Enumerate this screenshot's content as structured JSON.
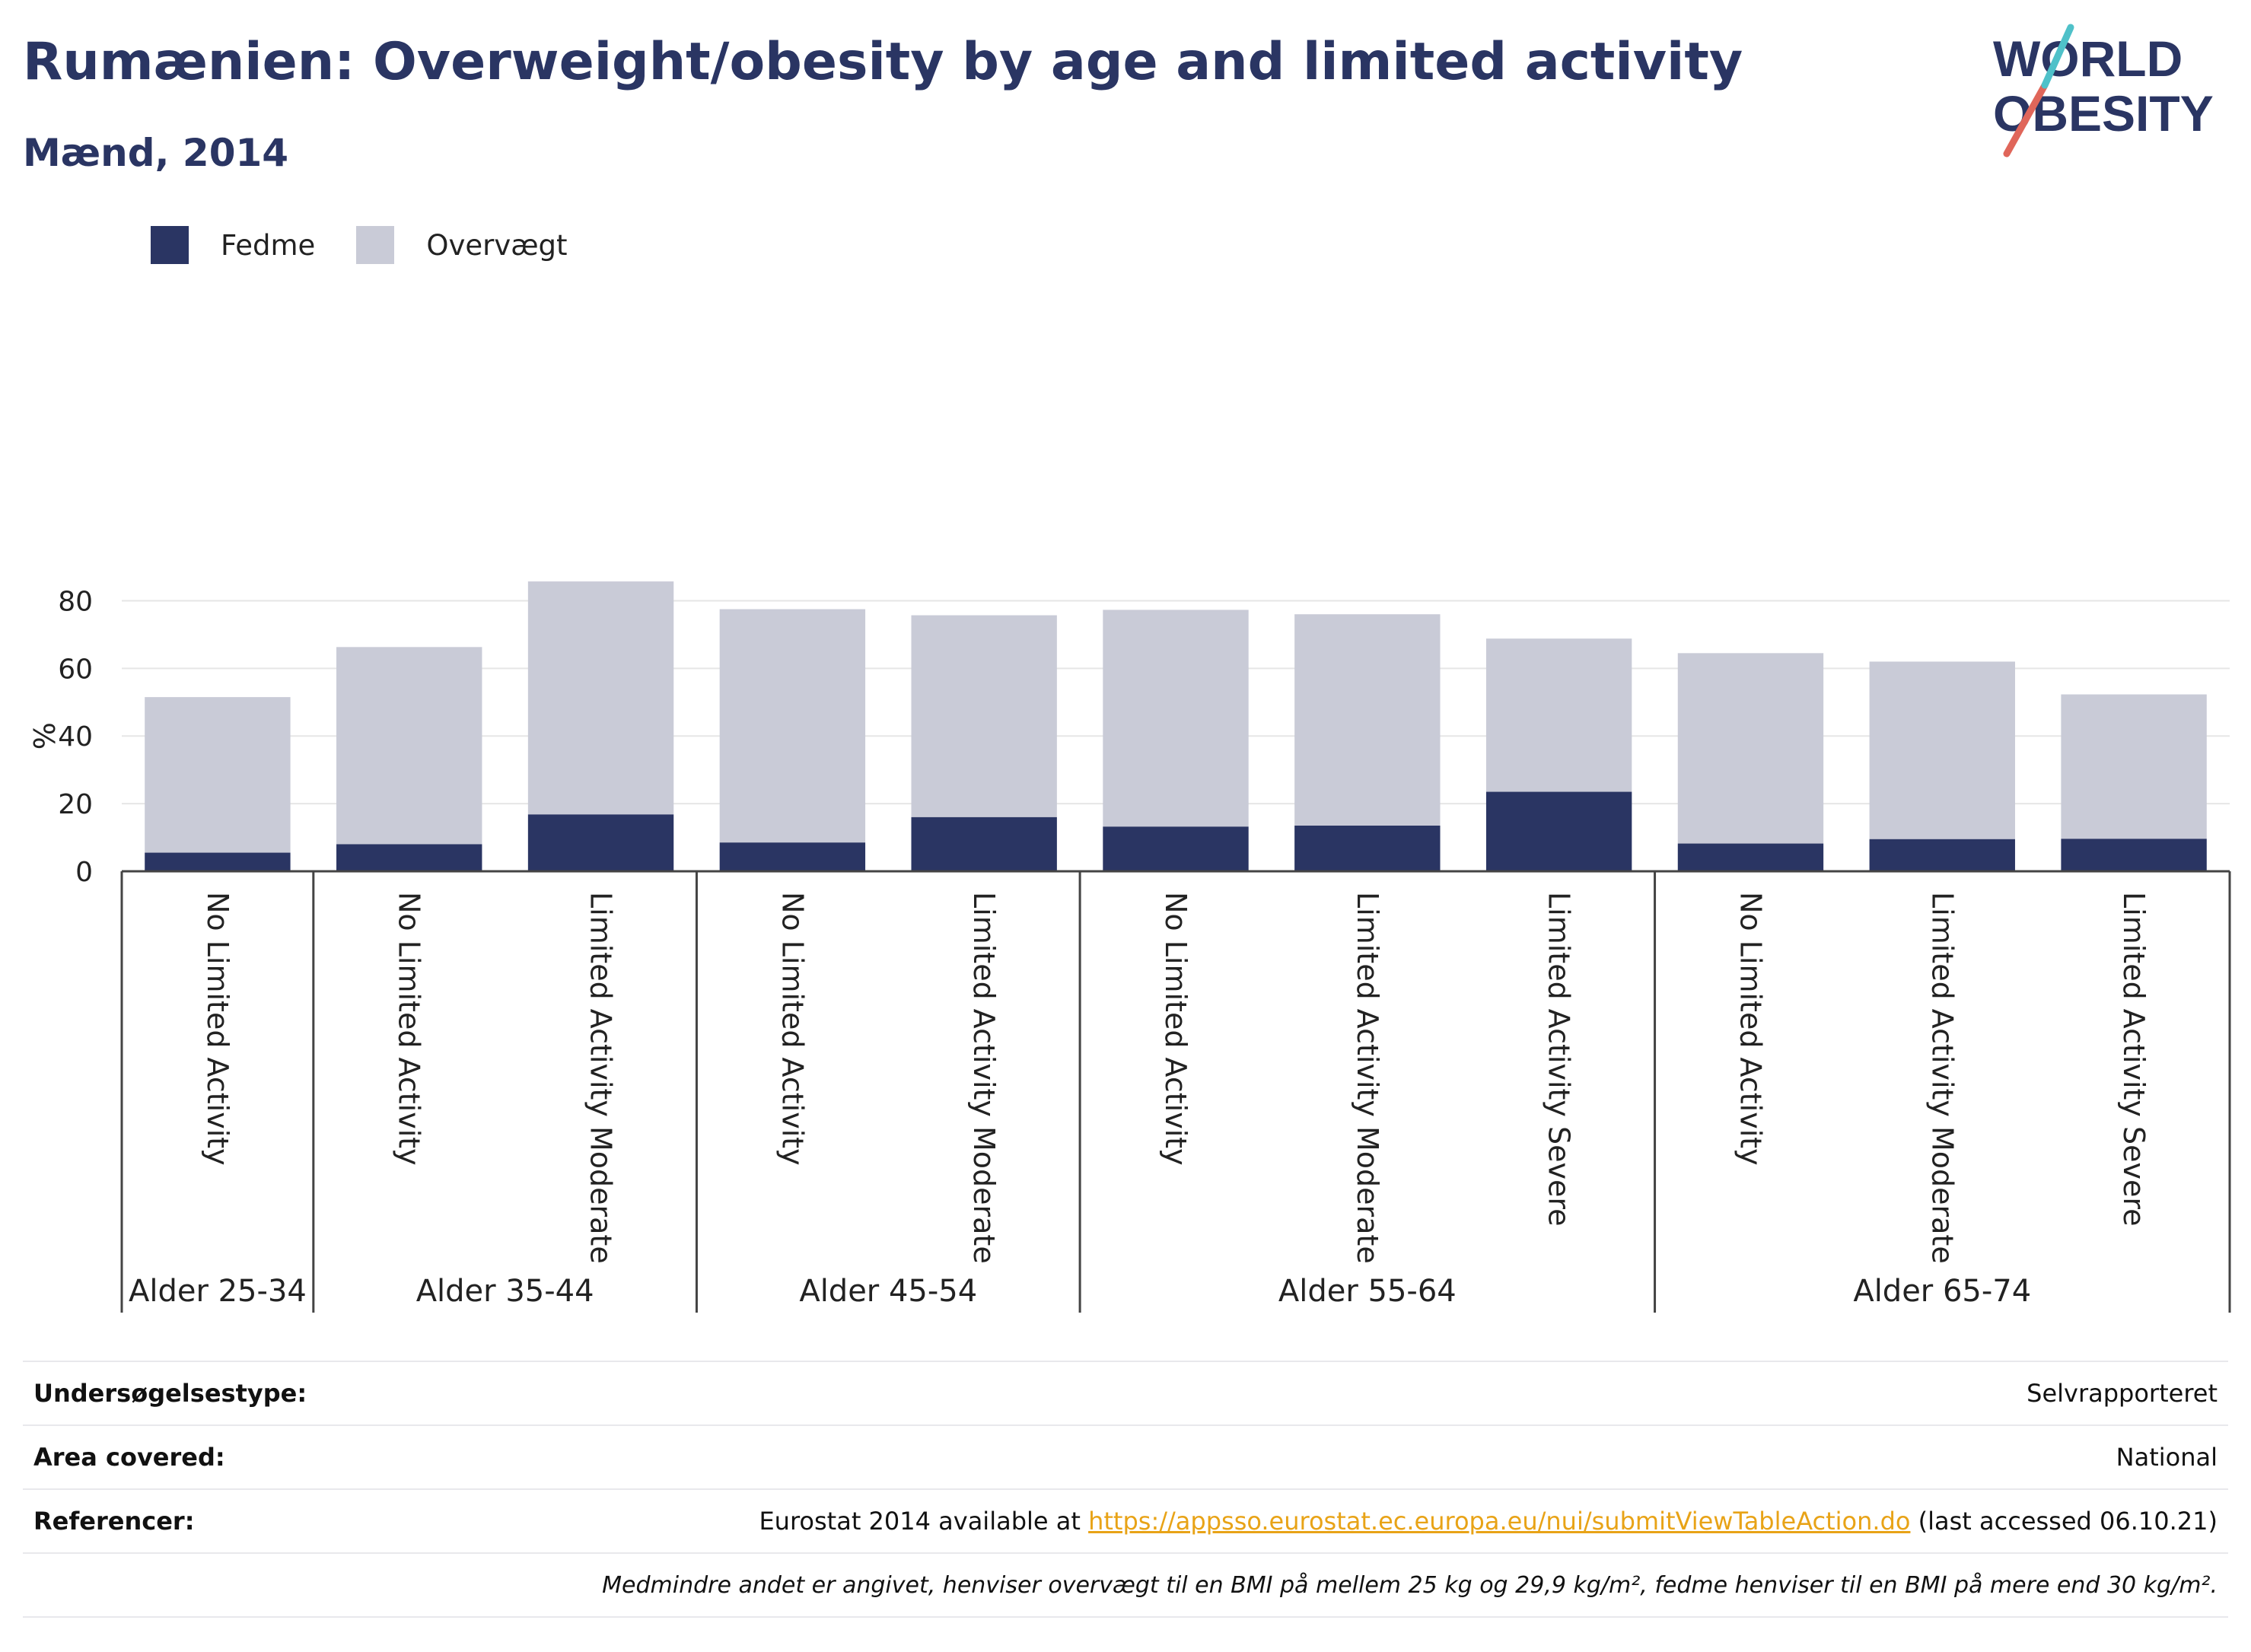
{
  "header": {
    "title": "Rumænien: Overweight/obesity by age and limited activity",
    "subtitle": "Mænd, 2014"
  },
  "logo": {
    "line1": "WORLD",
    "line2": "OBESITY",
    "accent_colors": [
      "#e0665a",
      "#4fc1c9"
    ]
  },
  "colors": {
    "obesity": "#2a3563",
    "overweight": "#c9cbd7",
    "grid": "#e6e6e6",
    "axis": "#444444"
  },
  "legend": [
    {
      "label": "Fedme",
      "color": "#2a3563"
    },
    {
      "label": "Overvægt",
      "color": "#c9cbd7"
    }
  ],
  "chart_data": {
    "type": "bar",
    "stacked": true,
    "ylabel": "%",
    "ylim": [
      0,
      90
    ],
    "yticks": [
      0,
      20,
      40,
      60,
      80
    ],
    "grid": true,
    "legend_position": "top-left",
    "categories": [
      "No Limited Activity",
      "No Limited Activity",
      "Limited Activity Moderate",
      "No Limited Activity",
      "Limited Activity Moderate",
      "No Limited Activity",
      "Limited Activity Moderate",
      "Limited Activity Severe",
      "No Limited Activity",
      "Limited Activity Moderate",
      "Limited Activity Severe"
    ],
    "groups": [
      {
        "label": "Alder 25-34",
        "count": 1
      },
      {
        "label": "Alder 35-44",
        "count": 2
      },
      {
        "label": "Alder 45-54",
        "count": 2
      },
      {
        "label": "Alder 55-64",
        "count": 3
      },
      {
        "label": "Alder 65-74",
        "count": 3
      }
    ],
    "series": [
      {
        "name": "Fedme",
        "values": [
          5.5,
          8.0,
          16.8,
          8.5,
          16.0,
          13.2,
          13.5,
          23.5,
          8.2,
          9.5,
          9.6
        ]
      },
      {
        "name": "Overvægt",
        "values": [
          46.0,
          58.3,
          68.9,
          69.0,
          59.7,
          64.1,
          62.5,
          45.3,
          56.3,
          52.5,
          42.7
        ]
      }
    ]
  },
  "info": {
    "survey_type_label": "Undersøgelsestype:",
    "survey_type_value": "Selvrapporteret",
    "area_label": "Area covered:",
    "area_value": "National",
    "references_label": "Referencer:",
    "references_prefix": "Eurostat 2014 available at ",
    "references_link": "https://appsso.eurostat.ec.europa.eu/nui/submitViewTableAction.do",
    "references_suffix": " (last accessed 06.10.21)",
    "note": "Medmindre andet er angivet, henviser overvægt til en BMI på mellem 25 kg og 29,9 kg/m², fedme henviser til en BMI på mere end 30 kg/m²."
  }
}
